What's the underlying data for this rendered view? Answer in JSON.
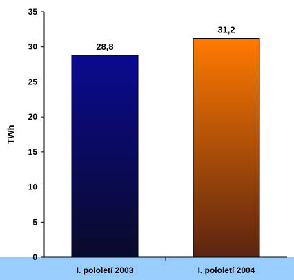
{
  "chart_data": {
    "type": "bar",
    "title": "",
    "xlabel": "",
    "ylabel": "TWh",
    "ylim": [
      0,
      35
    ],
    "yticks": [
      0,
      5,
      10,
      15,
      20,
      25,
      30,
      35
    ],
    "grid": false,
    "legend": "none",
    "categories": [
      "I. pololetí 2003",
      "I. pololetí 2004"
    ],
    "values": [
      28.8,
      31.2
    ],
    "data_labels": [
      "28,8",
      "31,2"
    ],
    "colors": {
      "background": "#ffffff",
      "category_band": "#99ccff",
      "bar_2003_top": "#0a0a8f",
      "bar_2003_bottom": "#0a0a2a",
      "bar_2004_top": "#ff7a00",
      "bar_2004_bottom": "#5a2410",
      "axis": "#000000"
    }
  }
}
